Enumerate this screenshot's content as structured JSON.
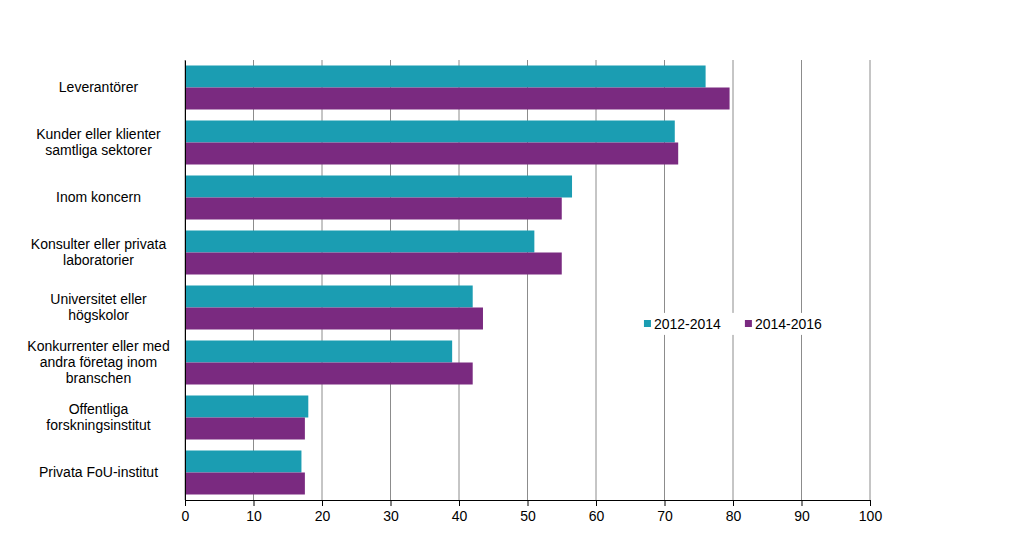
{
  "chart_data": {
    "type": "bar",
    "orientation": "horizontal",
    "categories": [
      "Leverantörer",
      "Kunder eller klienter\nsamtliga sektorer",
      "Inom koncern",
      "Konsulter eller privata\nlaboratorier",
      "Universitet eller\nhögskolor",
      "Konkurrenter eller med\nandra företag inom\nbranschen",
      "Offentliga\nforskningsinstitut",
      "Privata FoU-institut"
    ],
    "series": [
      {
        "name": "2012-2014",
        "color": "#1b9db2",
        "values": [
          76,
          71.5,
          56.5,
          51,
          42,
          39,
          18,
          17
        ]
      },
      {
        "name": "2014-2016",
        "color": "#7a2a80",
        "values": [
          79.5,
          72,
          55,
          55,
          43.5,
          42,
          17.5,
          17.5
        ]
      }
    ],
    "xlim": [
      0,
      100
    ],
    "xticks": [
      0,
      10,
      20,
      30,
      40,
      50,
      60,
      70,
      80,
      90,
      100
    ],
    "grid": true,
    "legend": "right"
  }
}
